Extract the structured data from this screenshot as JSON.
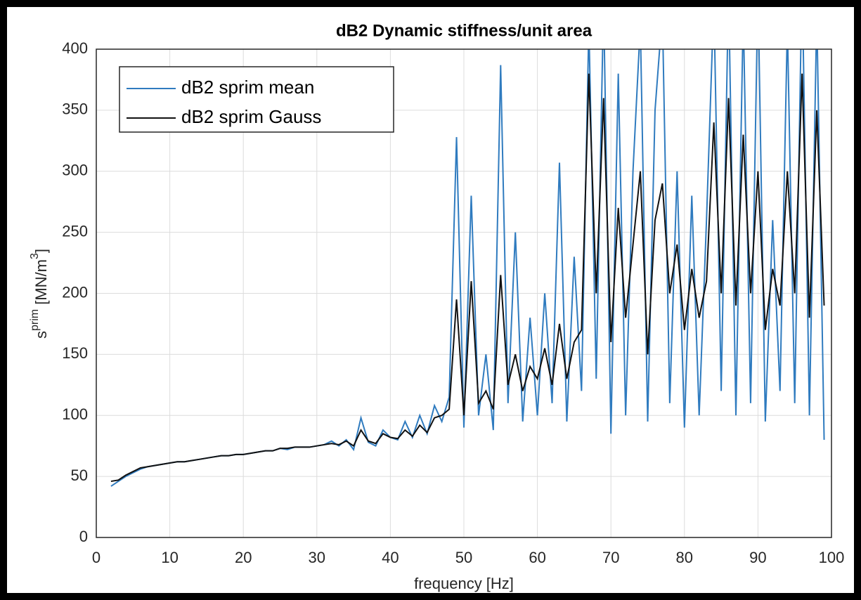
{
  "chart_data": {
    "type": "line",
    "title": "dB2 Dynamic stiffness/unit area",
    "xlabel": "frequency [Hz]",
    "ylabel": {
      "base": "s",
      "sup": "prim",
      "unit": " [MN/m",
      "unit_sup": "3",
      "close": "]"
    },
    "x": [
      2,
      3,
      4,
      5,
      6,
      7,
      8,
      9,
      10,
      11,
      12,
      13,
      14,
      15,
      16,
      17,
      18,
      19,
      20,
      21,
      22,
      23,
      24,
      25,
      26,
      27,
      28,
      29,
      30,
      31,
      32,
      33,
      34,
      35,
      36,
      37,
      38,
      39,
      40,
      41,
      42,
      43,
      44,
      45,
      46,
      47,
      48,
      49,
      50,
      51,
      52,
      53,
      54,
      55,
      56,
      57,
      58,
      59,
      60,
      61,
      62,
      63,
      64,
      65,
      66,
      67,
      68,
      69,
      70,
      71,
      72,
      73,
      74,
      75,
      76,
      77,
      78,
      79,
      80,
      81,
      82,
      83,
      84,
      85,
      86,
      87,
      88,
      89,
      90,
      91,
      92,
      93,
      94,
      95,
      96,
      97,
      98,
      99
    ],
    "series": [
      {
        "name": "dB2 sprim mean",
        "color": "#2f7bbf",
        "values": [
          42,
          46,
          50,
          53,
          56,
          58,
          59,
          60,
          61,
          62,
          62,
          63,
          64,
          65,
          66,
          67,
          67,
          68,
          68,
          69,
          70,
          71,
          71,
          73,
          72,
          74,
          74,
          74,
          75,
          76,
          79,
          75,
          80,
          72,
          98,
          78,
          75,
          88,
          82,
          80,
          95,
          82,
          100,
          85,
          108,
          95,
          115,
          328,
          90,
          280,
          100,
          150,
          88,
          387,
          110,
          250,
          95,
          180,
          100,
          200,
          110,
          307,
          95,
          230,
          120,
          420,
          130,
          440,
          85,
          380,
          100,
          300,
          420,
          95,
          350,
          430,
          110,
          300,
          90,
          280,
          100,
          260,
          440,
          120,
          450,
          100,
          430,
          110,
          450,
          95,
          260,
          120,
          420,
          110,
          460,
          100,
          430,
          80
        ]
      },
      {
        "name": "dB2 sprim Gauss",
        "color": "#111111",
        "values": [
          46,
          47,
          51,
          54,
          57,
          58,
          59,
          60,
          61,
          62,
          62,
          63,
          64,
          65,
          66,
          67,
          67,
          68,
          68,
          69,
          70,
          71,
          71,
          73,
          73,
          74,
          74,
          74,
          75,
          76,
          77,
          76,
          79,
          75,
          88,
          79,
          77,
          85,
          82,
          81,
          88,
          83,
          92,
          86,
          98,
          100,
          105,
          195,
          100,
          210,
          110,
          120,
          105,
          215,
          125,
          150,
          120,
          140,
          130,
          155,
          125,
          175,
          130,
          160,
          170,
          380,
          200,
          360,
          160,
          270,
          180,
          240,
          300,
          150,
          260,
          290,
          200,
          240,
          170,
          220,
          180,
          210,
          340,
          200,
          360,
          190,
          330,
          200,
          300,
          170,
          220,
          190,
          300,
          200,
          380,
          180,
          350,
          190
        ]
      }
    ],
    "xlim": [
      0,
      100
    ],
    "ylim": [
      0,
      400
    ],
    "xticks": [
      0,
      10,
      20,
      30,
      40,
      50,
      60,
      70,
      80,
      90,
      100
    ],
    "yticks": [
      0,
      50,
      100,
      150,
      200,
      250,
      300,
      350,
      400
    ],
    "grid": true,
    "legend": "northwest"
  }
}
